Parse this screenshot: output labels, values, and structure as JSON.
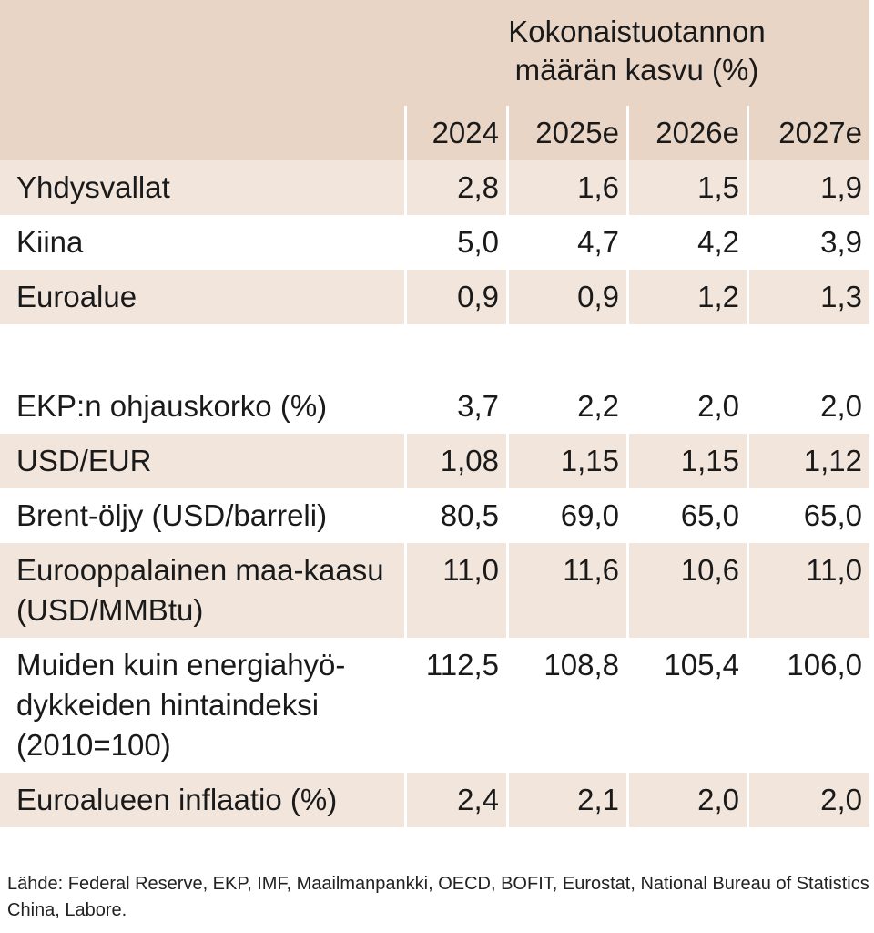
{
  "header": {
    "title_line1": "Kokonaistuotannon",
    "title_line2": "määrän kasvu (%)",
    "years": [
      "2024",
      "2025e",
      "2026e",
      "2027e"
    ]
  },
  "rows": [
    {
      "label": "Yhdysvallat",
      "values": [
        "2,8",
        "1,6",
        "1,5",
        "1,9"
      ]
    },
    {
      "label": "Kiina",
      "values": [
        "5,0",
        "4,7",
        "4,2",
        "3,9"
      ]
    },
    {
      "label": "Euroalue",
      "values": [
        "0,9",
        "0,9",
        "1,2",
        "1,3"
      ]
    },
    {
      "label": "",
      "values": [
        "",
        "",
        "",
        ""
      ]
    },
    {
      "label": "EKP:n ohjauskorko (%)",
      "values": [
        "3,7",
        "2,2",
        "2,0",
        "2,0"
      ]
    },
    {
      "label": "USD/EUR",
      "values": [
        "1,08",
        "1,15",
        "1,15",
        "1,12"
      ]
    },
    {
      "label": "Brent-öljy (USD/barreli)",
      "values": [
        "80,5",
        "69,0",
        "65,0",
        "65,0"
      ]
    },
    {
      "label": "Eurooppalainen maa-kaasu (USD/MMBtu)",
      "values": [
        "11,0",
        "11,6",
        "10,6",
        "11,0"
      ]
    },
    {
      "label": "Muiden kuin energiahyö-dykkeiden hintaindeksi (2010=100)",
      "values": [
        "112,5",
        "108,8",
        "105,4",
        "106,0"
      ]
    },
    {
      "label": "Euroalueen inflaatio (%)",
      "values": [
        "2,4",
        "2,1",
        "2,0",
        "2,0"
      ]
    }
  ],
  "source": "Lähde: Federal Reserve, EKP, IMF, Maailmanpankki, OECD, BOFIT, Eurostat, National Bureau of Statistics China, Labore.",
  "colors": {
    "header_bg": "#e8d5c6",
    "shaded_row": "#f2e5dc"
  }
}
